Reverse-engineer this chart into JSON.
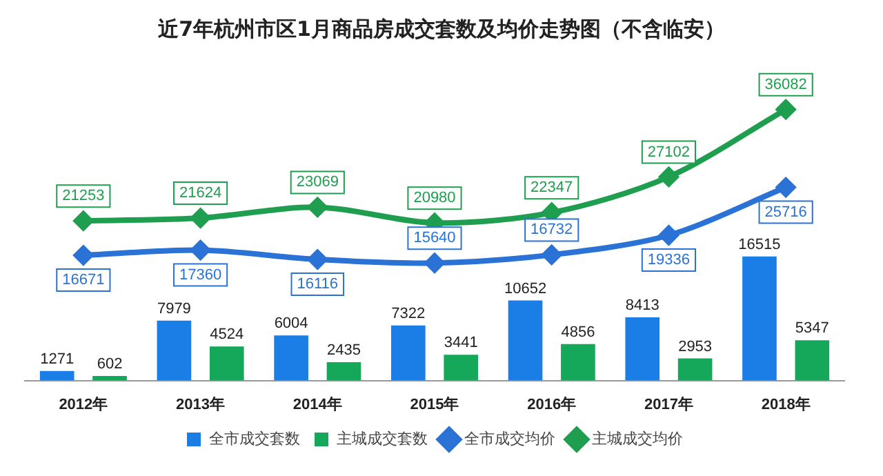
{
  "chart_data": {
    "type": "bar",
    "title": "近7年杭州市区1月商品房成交套数及均价走势图（不含临安）",
    "categories": [
      "2012年",
      "2013年",
      "2014年",
      "2015年",
      "2016年",
      "2017年",
      "2018年"
    ],
    "series": [
      {
        "name": "全市成交套数",
        "color": "#1a7ee6",
        "values": [
          1271,
          7979,
          6004,
          7322,
          10652,
          8413,
          16515
        ]
      },
      {
        "name": "主城成交套数",
        "color": "#16a85a",
        "values": [
          602,
          4524,
          2435,
          3441,
          4856,
          2953,
          5347
        ]
      },
      {
        "name": "全市成交均价",
        "type": "line",
        "color": "#2a72d6",
        "values": [
          16671,
          17360,
          16116,
          15640,
          16732,
          19336,
          25716
        ]
      },
      {
        "name": "主城成交均价",
        "type": "line",
        "color": "#1e9e4e",
        "values": [
          21253,
          21624,
          23069,
          20980,
          22347,
          27102,
          36082
        ]
      }
    ],
    "tick_labels": "x",
    "grid": false,
    "legend": "bottom",
    "marker": "diamond",
    "data_labels": true
  }
}
